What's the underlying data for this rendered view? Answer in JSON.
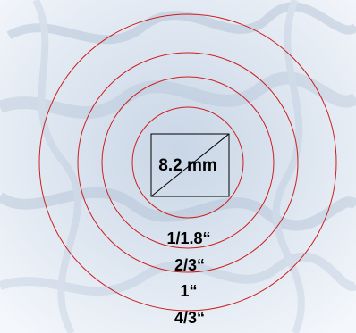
{
  "colors": {
    "background_texture": "#dfe7f1",
    "circle_stroke": "#cc1f1f",
    "rectangle_stroke": "#000000",
    "text": "#000000"
  },
  "sensor_diagonal_label": "8.2 mm",
  "circle_labels": {
    "c1": "1/1.8“",
    "c2": "2/3“",
    "c3": "1“",
    "c4": "4/3“"
  }
}
